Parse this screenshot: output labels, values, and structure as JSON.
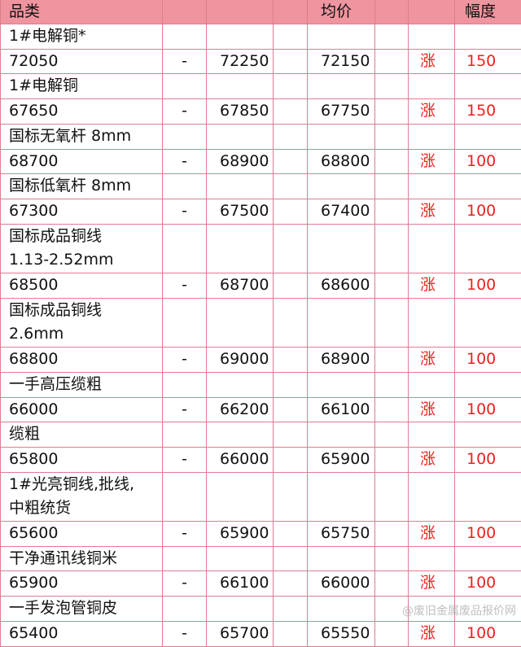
{
  "header": {
    "category": "品类",
    "average": "均价",
    "change": "幅度"
  },
  "rows": [
    {
      "name": "1#电解铜*",
      "low": "72050",
      "sep": "-",
      "high": "72250",
      "avg": "72150",
      "trend": "涨",
      "change": "150"
    },
    {
      "name": "1#电解铜",
      "low": "67650",
      "sep": "-",
      "high": "67850",
      "avg": "67750",
      "trend": "涨",
      "change": "150"
    },
    {
      "name": "国标无氧杆 8mm",
      "low": "68700",
      "sep": "-",
      "high": "68900",
      "avg": "68800",
      "trend": "涨",
      "change": "100"
    },
    {
      "name": "国标低氧杆 8mm",
      "low": "67300",
      "sep": "-",
      "high": "67500",
      "avg": "67400",
      "trend": "涨",
      "change": "100"
    },
    {
      "name": "国标成品铜线 1.13-2.52mm",
      "low": "68500",
      "sep": "-",
      "high": "68700",
      "avg": "68600",
      "trend": "涨",
      "change": "100"
    },
    {
      "name": "国标成品铜线 2.6mm",
      "low": "68800",
      "sep": "-",
      "high": "69000",
      "avg": "68900",
      "trend": "涨",
      "change": "100"
    },
    {
      "name": "一手高压缆粗",
      "low": "66000",
      "sep": "-",
      "high": "66200",
      "avg": "66100",
      "trend": "涨",
      "change": "100"
    },
    {
      "name": "缆粗",
      "low": "65800",
      "sep": "-",
      "high": "66000",
      "avg": "65900",
      "trend": "涨",
      "change": "100"
    },
    {
      "name": "1#光亮铜线,批线,中粗统货",
      "low": "65600",
      "sep": "-",
      "high": "65900",
      "avg": "65750",
      "trend": "涨",
      "change": "100"
    },
    {
      "name": "干净通讯线铜米",
      "low": "65900",
      "sep": "-",
      "high": "66100",
      "avg": "66000",
      "trend": "涨",
      "change": "100"
    },
    {
      "name": "一手发泡管铜皮",
      "low": "65400",
      "sep": "-",
      "high": "65700",
      "avg": "65550",
      "trend": "涨",
      "change": "100"
    }
  ],
  "watermark": "@废旧金属废品报价网"
}
